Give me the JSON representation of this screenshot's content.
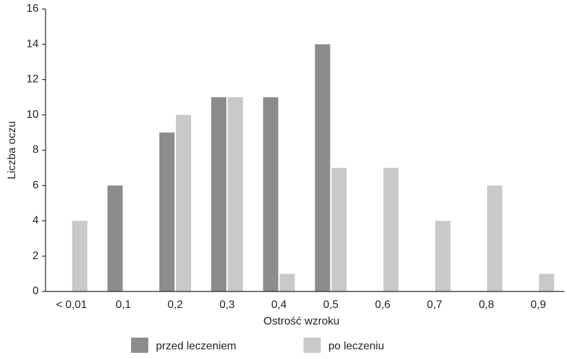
{
  "chart_data": {
    "type": "bar",
    "xlabel": "Ostrość wzroku",
    "ylabel": "Liczba oczu",
    "categories": [
      "< 0,01",
      "0,1",
      "0,2",
      "0,3",
      "0,4",
      "0,5",
      "0,6",
      "0,7",
      "0,8",
      "0,9"
    ],
    "series": [
      {
        "name": "przed leczeniem",
        "color": "#8c8c8e",
        "values": [
          0,
          6,
          9,
          11,
          11,
          14,
          0,
          0,
          0,
          0
        ]
      },
      {
        "name": "po leczeniu",
        "color": "#c8c9cb",
        "values": [
          4,
          0,
          10,
          11,
          1,
          7,
          7,
          4,
          6,
          1
        ]
      }
    ],
    "ylim": [
      0,
      16
    ],
    "yticks": [
      0,
      2,
      4,
      6,
      8,
      10,
      12,
      14,
      16
    ],
    "grid": false
  }
}
